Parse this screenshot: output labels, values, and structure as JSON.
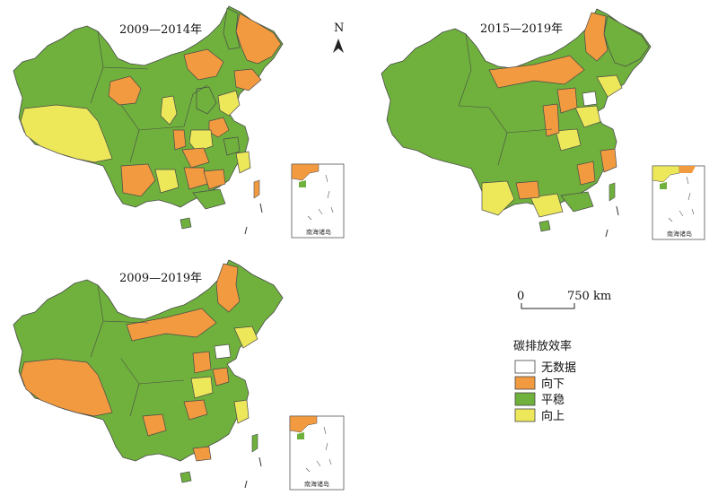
{
  "maps": [
    {
      "title": "2009—2014年"
    },
    {
      "title": "2015—2019年"
    },
    {
      "title": "2009—2019年"
    }
  ],
  "inset_label": "南海诸岛",
  "north_label": "N",
  "scale": {
    "zero": "0",
    "distance": "750 km"
  },
  "legend": {
    "title": "碳排放效率",
    "items": [
      {
        "label": "无数据",
        "color": "#ffffff"
      },
      {
        "label": "向下",
        "color": "#f29a3f"
      },
      {
        "label": "平稳",
        "color": "#6fb13c"
      },
      {
        "label": "向上",
        "color": "#ede75a"
      }
    ]
  },
  "colors": {
    "down": "#f29a3f",
    "stable": "#6fb13c",
    "up": "#ede75a",
    "nodata": "#ffffff",
    "border": "#4a4a4a"
  }
}
